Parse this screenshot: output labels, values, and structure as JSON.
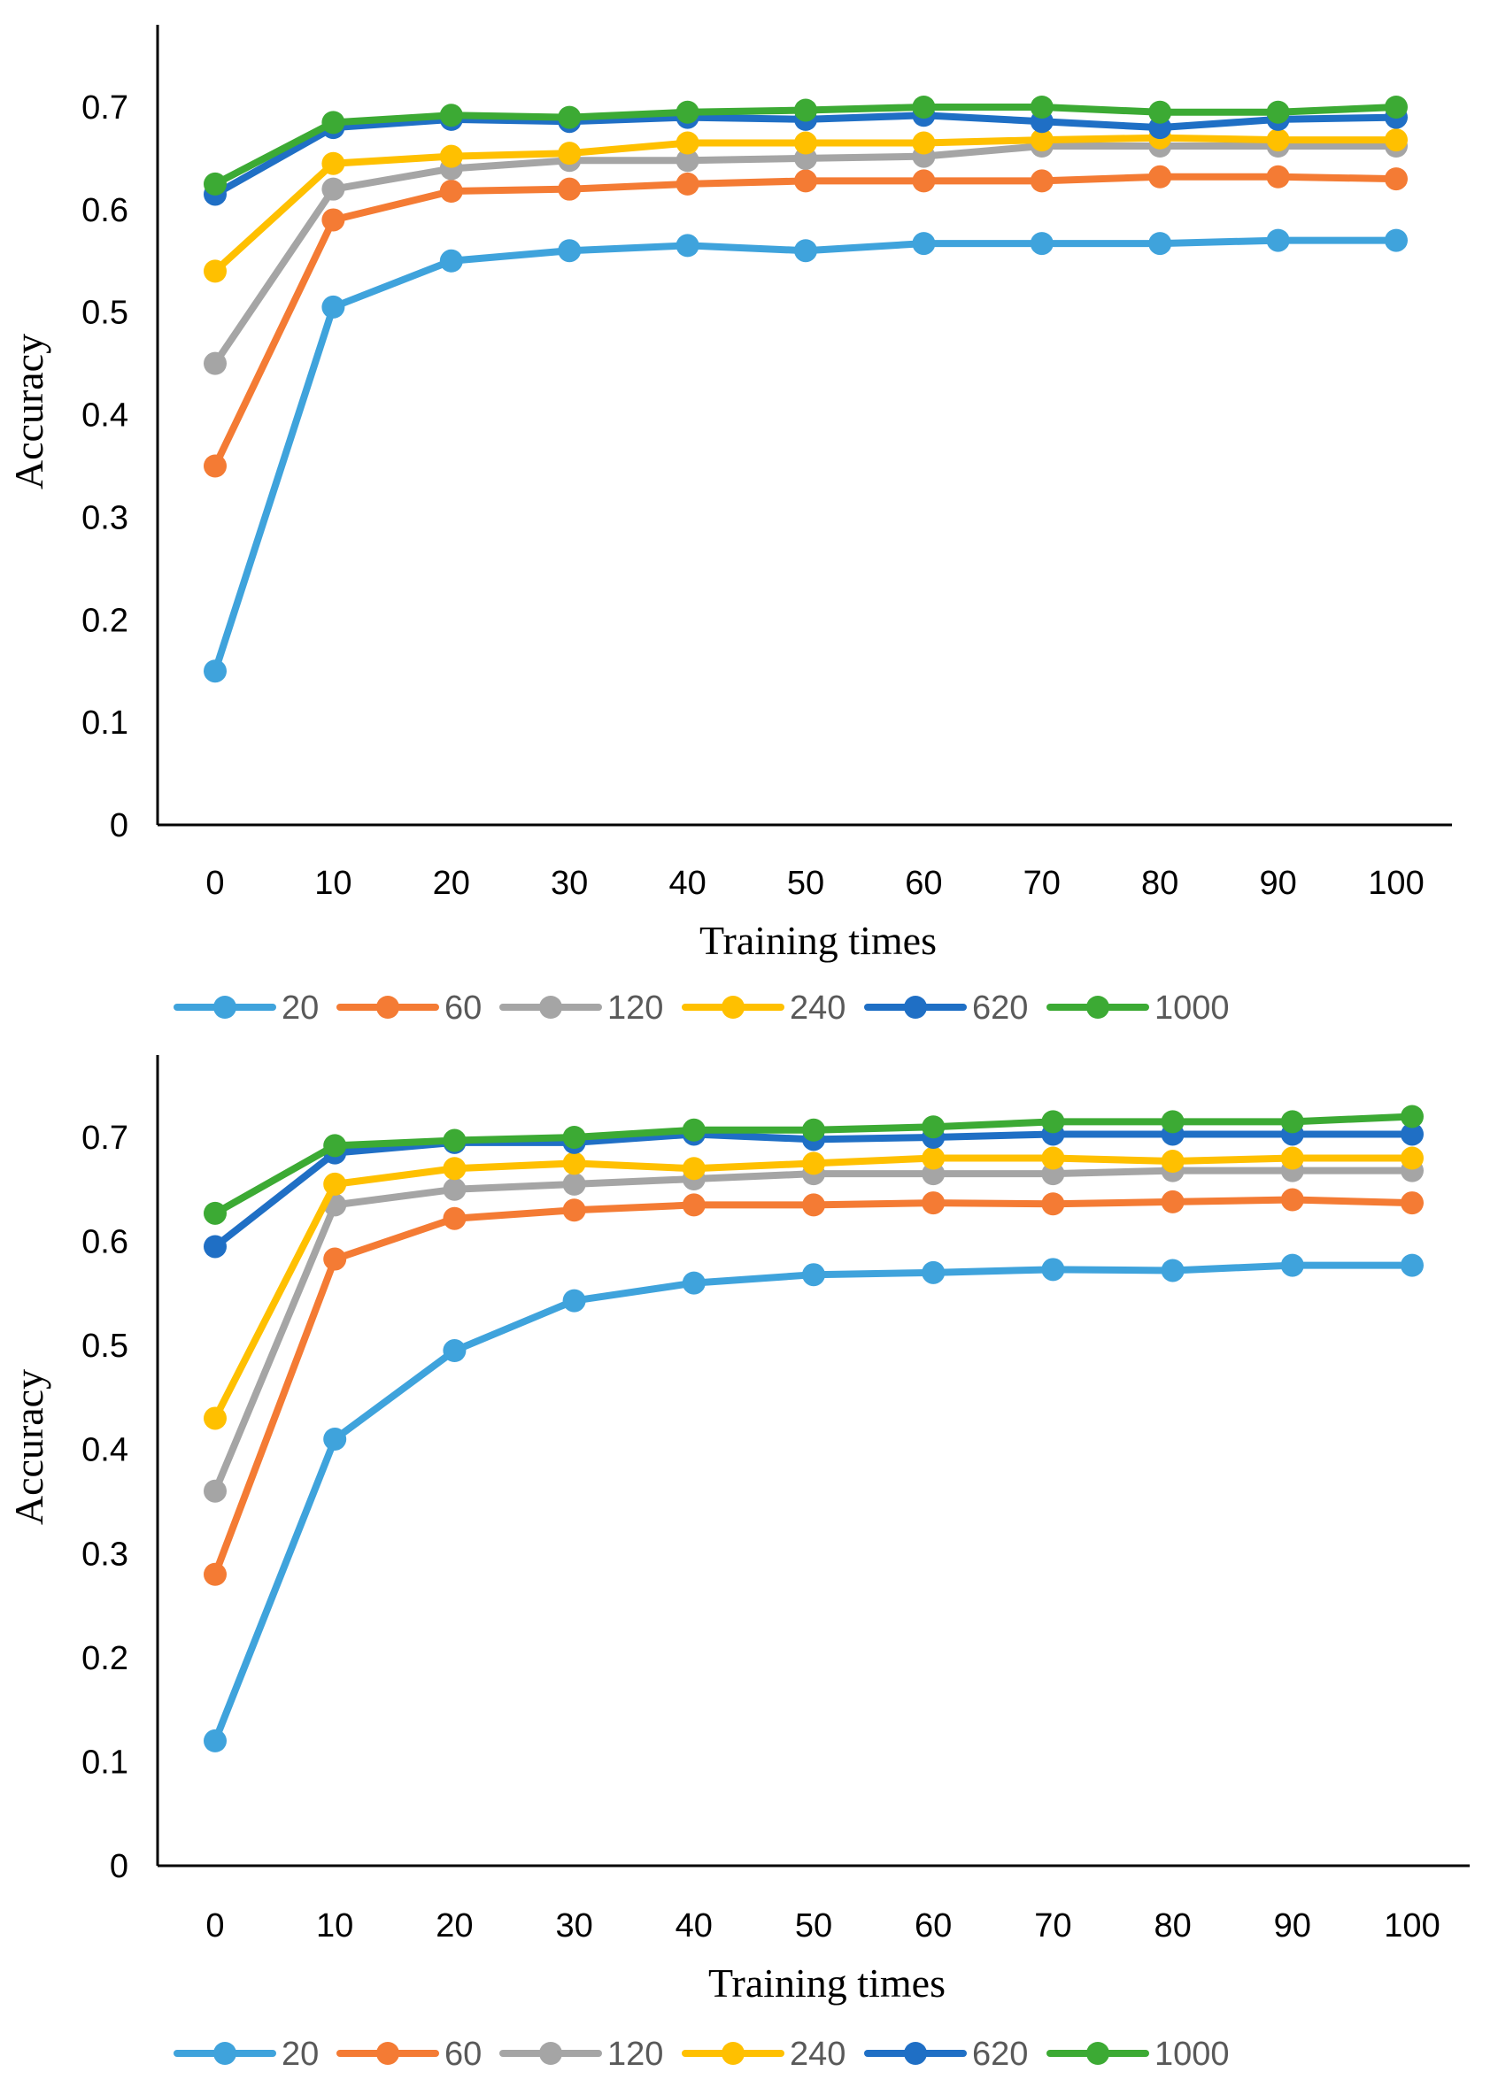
{
  "chart_data": [
    {
      "type": "line",
      "title": "",
      "xlabel": "Training times",
      "ylabel": "Accuracy",
      "categories": [
        "0",
        "10",
        "20",
        "30",
        "40",
        "50",
        "60",
        "70",
        "80",
        "90",
        "100"
      ],
      "x": [
        0,
        10,
        20,
        30,
        40,
        50,
        60,
        70,
        80,
        90,
        100
      ],
      "yticks": [
        "0",
        "0.1",
        "0.2",
        "0.3",
        "0.4",
        "0.5",
        "0.6",
        "0.7"
      ],
      "ylim": [
        0,
        0.75
      ],
      "grid": false,
      "legend": "bottom",
      "series": [
        {
          "name": "20",
          "color": "#3fa3dc",
          "values": [
            0.15,
            0.505,
            0.55,
            0.56,
            0.565,
            0.56,
            0.567,
            0.567,
            0.567,
            0.57,
            0.57
          ]
        },
        {
          "name": "60",
          "color": "#f47b34",
          "values": [
            0.35,
            0.59,
            0.618,
            0.62,
            0.625,
            0.628,
            0.628,
            0.628,
            0.632,
            0.632,
            0.63
          ]
        },
        {
          "name": "120",
          "color": "#a5a5a5",
          "values": [
            0.45,
            0.62,
            0.64,
            0.648,
            0.648,
            0.65,
            0.652,
            0.662,
            0.662,
            0.662,
            0.662
          ]
        },
        {
          "name": "240",
          "color": "#ffc000",
          "values": [
            0.54,
            0.645,
            0.652,
            0.655,
            0.665,
            0.665,
            0.665,
            0.668,
            0.67,
            0.668,
            0.668
          ]
        },
        {
          "name": "620",
          "color": "#1f6fc5",
          "values": [
            0.615,
            0.68,
            0.688,
            0.686,
            0.69,
            0.688,
            0.692,
            0.686,
            0.68,
            0.688,
            0.69
          ]
        },
        {
          "name": "1000",
          "color": "#3caa34",
          "values": [
            0.625,
            0.685,
            0.692,
            0.69,
            0.695,
            0.697,
            0.7,
            0.7,
            0.695,
            0.695,
            0.7
          ]
        }
      ]
    },
    {
      "type": "line",
      "title": "",
      "xlabel": "Training times",
      "ylabel": "Accuracy",
      "categories": [
        "0",
        "10",
        "20",
        "30",
        "40",
        "50",
        "60",
        "70",
        "80",
        "90",
        "100"
      ],
      "x": [
        0,
        10,
        20,
        30,
        40,
        50,
        60,
        70,
        80,
        90,
        100
      ],
      "yticks": [
        "0",
        "0.1",
        "0.2",
        "0.3",
        "0.4",
        "0.5",
        "0.6",
        "0.7"
      ],
      "ylim": [
        0,
        0.75
      ],
      "grid": false,
      "legend": "bottom",
      "series": [
        {
          "name": "20",
          "color": "#3fa3dc",
          "values": [
            0.12,
            0.41,
            0.495,
            0.543,
            0.56,
            0.568,
            0.57,
            0.573,
            0.572,
            0.577,
            0.577
          ]
        },
        {
          "name": "60",
          "color": "#f47b34",
          "values": [
            0.28,
            0.583,
            0.622,
            0.63,
            0.635,
            0.635,
            0.637,
            0.636,
            0.638,
            0.64,
            0.637
          ]
        },
        {
          "name": "120",
          "color": "#a5a5a5",
          "values": [
            0.36,
            0.635,
            0.65,
            0.655,
            0.66,
            0.665,
            0.665,
            0.665,
            0.668,
            0.668,
            0.668
          ]
        },
        {
          "name": "240",
          "color": "#ffc000",
          "values": [
            0.43,
            0.655,
            0.67,
            0.675,
            0.67,
            0.675,
            0.68,
            0.68,
            0.677,
            0.68,
            0.68
          ]
        },
        {
          "name": "620",
          "color": "#1f6fc5",
          "values": [
            0.595,
            0.685,
            0.695,
            0.695,
            0.703,
            0.698,
            0.7,
            0.703,
            0.703,
            0.703,
            0.703
          ]
        },
        {
          "name": "1000",
          "color": "#3caa34",
          "values": [
            0.627,
            0.692,
            0.697,
            0.7,
            0.707,
            0.707,
            0.71,
            0.715,
            0.715,
            0.715,
            0.72
          ]
        }
      ]
    }
  ]
}
